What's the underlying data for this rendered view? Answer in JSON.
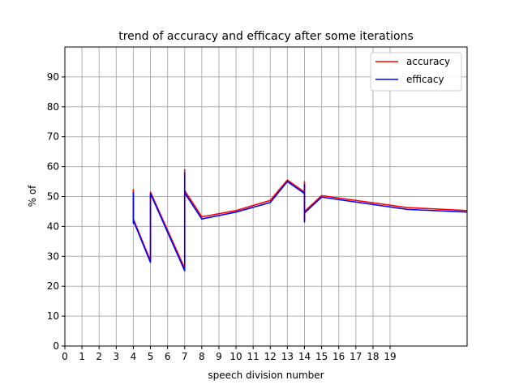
{
  "chart_data": {
    "type": "line",
    "title": "trend of accuracy and efficacy after some iterations",
    "xlabel": "speech division number",
    "ylabel": "% of",
    "xlim": [
      0,
      23.5
    ],
    "ylim": [
      0,
      100
    ],
    "x_tick_values": [
      0,
      1,
      2,
      3,
      4,
      5,
      6,
      7,
      8,
      9,
      10,
      11,
      12,
      13,
      14,
      15,
      16,
      17,
      18,
      19
    ],
    "x_tick_labels": [
      "0",
      "1",
      "2",
      "3",
      "4",
      "5",
      "6",
      "7",
      "8",
      "9",
      "10",
      "11",
      "12",
      "13",
      "14",
      "15",
      "16",
      "17",
      "18",
      "19"
    ],
    "y_tick_values": [
      0,
      10,
      20,
      30,
      40,
      50,
      60,
      70,
      80,
      90
    ],
    "y_tick_labels": [
      "0",
      "10",
      "20",
      "30",
      "40",
      "50",
      "60",
      "70",
      "80",
      "90"
    ],
    "grid": true,
    "legend_position": "top-right",
    "series": [
      {
        "name": "accuracy",
        "color": "#ff0000",
        "points": [
          [
            4,
            52.5
          ],
          [
            4,
            41.5
          ],
          [
            4,
            42.5
          ],
          [
            5,
            28.5
          ],
          [
            5,
            51.5
          ],
          [
            7,
            26.0
          ],
          [
            7,
            59.0
          ],
          [
            7,
            41.0
          ],
          [
            7,
            52.0
          ],
          [
            8,
            43.2
          ],
          [
            10,
            45.3
          ],
          [
            12,
            48.7
          ],
          [
            13,
            55.5
          ],
          [
            14,
            51.5
          ],
          [
            14,
            55.0
          ],
          [
            14,
            42.0
          ],
          [
            14,
            45.0
          ],
          [
            15,
            50.3
          ],
          [
            20,
            46.3
          ],
          [
            23.5,
            45.3
          ]
        ]
      },
      {
        "name": "efficacy",
        "color": "#0000ff",
        "points": [
          [
            4,
            51.5
          ],
          [
            4,
            41.0
          ],
          [
            4,
            42.0
          ],
          [
            5,
            28.0
          ],
          [
            5,
            51.0
          ],
          [
            7,
            25.2
          ],
          [
            7,
            58.0
          ],
          [
            7,
            40.5
          ],
          [
            7,
            51.2
          ],
          [
            8,
            42.5
          ],
          [
            10,
            44.8
          ],
          [
            12,
            48.0
          ],
          [
            13,
            55.0
          ],
          [
            14,
            51.0
          ],
          [
            14,
            54.0
          ],
          [
            14,
            41.5
          ],
          [
            14,
            44.5
          ],
          [
            15,
            49.8
          ],
          [
            20,
            45.7
          ],
          [
            23.5,
            44.8
          ]
        ]
      }
    ]
  }
}
